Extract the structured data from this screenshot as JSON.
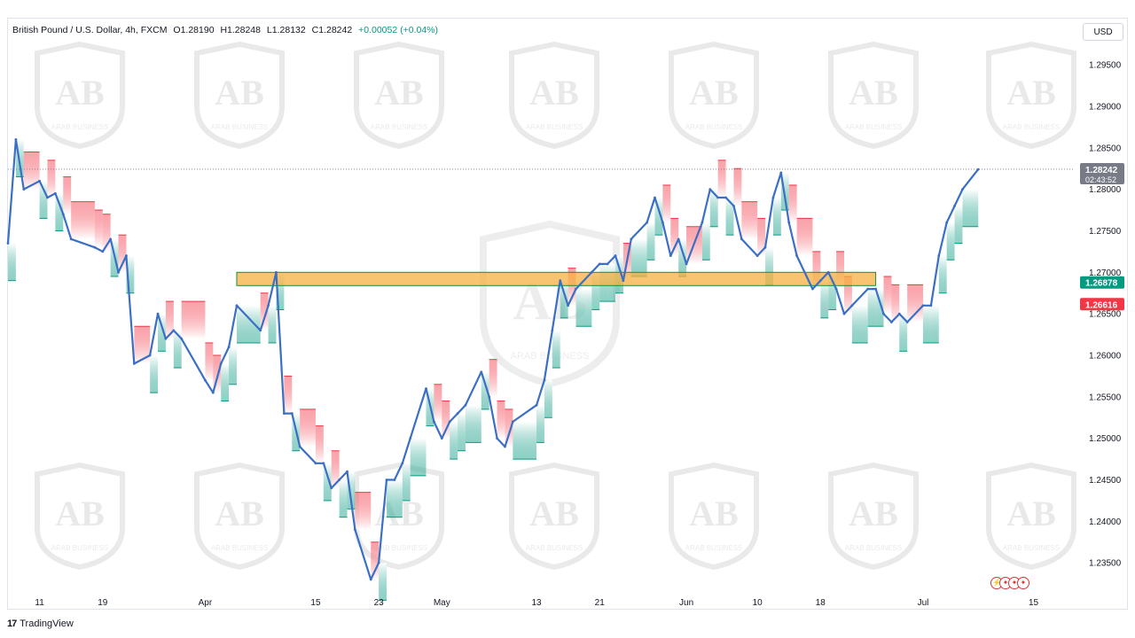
{
  "header": {
    "symbol": "British Pound / U.S. Dollar, 4h, FXCM",
    "open": "O1.28190",
    "high": "H1.28248",
    "low": "L1.28132",
    "close": "C1.28242",
    "change": "+0.00052 (+0.04%)"
  },
  "currency_button": "USD",
  "footer": {
    "brand": "TradingView",
    "logo": "17"
  },
  "watermark": {
    "initials": "AB",
    "text": "ARAB BUSINESS"
  },
  "colors": {
    "candle": "#3b6fc4",
    "up_band": "#089981",
    "down_band": "#f23645",
    "zone": "#f5b041",
    "zone_border": "#1a8f3a",
    "price_tag": "#787b86"
  },
  "chart_data": {
    "type": "line",
    "title": "British Pound / U.S. Dollar, 4h, FXCM",
    "ylim": [
      1.2315,
      1.298
    ],
    "y_ticks": [
      "1.29500",
      "1.29000",
      "1.28500",
      "1.28000",
      "1.27500",
      "1.27000",
      "1.26500",
      "1.26000",
      "1.25500",
      "1.25000",
      "1.24500",
      "1.24000",
      "1.23500"
    ],
    "y_tick_values": [
      1.295,
      1.29,
      1.285,
      1.28,
      1.275,
      1.27,
      1.265,
      1.26,
      1.255,
      1.25,
      1.245,
      1.24,
      1.235
    ],
    "x_ticks": [
      "11",
      "19",
      "Apr",
      "15",
      "23",
      "May",
      "13",
      "21",
      "Jun",
      "10",
      "18",
      "Jul",
      "15"
    ],
    "x_tick_values": [
      "2024-03-11",
      "2024-03-19",
      "2024-04-01",
      "2024-04-15",
      "2024-04-23",
      "2024-05-01",
      "2024-05-13",
      "2024-05-21",
      "2024-06-01",
      "2024-06-10",
      "2024-06-18",
      "2024-07-01",
      "2024-07-15"
    ],
    "series": [
      {
        "values": [
          [
            "2024-03-07",
            1.2735
          ],
          [
            "2024-03-08",
            1.286
          ],
          [
            "2024-03-09",
            1.28
          ],
          [
            "2024-03-11",
            1.281
          ],
          [
            "2024-03-12",
            1.279
          ],
          [
            "2024-03-13",
            1.2795
          ],
          [
            "2024-03-14",
            1.277
          ],
          [
            "2024-03-15",
            1.274
          ],
          [
            "2024-03-18",
            1.273
          ],
          [
            "2024-03-19",
            1.2725
          ],
          [
            "2024-03-20",
            1.274
          ],
          [
            "2024-03-21",
            1.27
          ],
          [
            "2024-03-22",
            1.272
          ],
          [
            "2024-03-23",
            1.259
          ],
          [
            "2024-03-25",
            1.26
          ],
          [
            "2024-03-26",
            1.265
          ],
          [
            "2024-03-27",
            1.262
          ],
          [
            "2024-03-28",
            1.263
          ],
          [
            "2024-03-29",
            1.262
          ],
          [
            "2024-04-01",
            1.257
          ],
          [
            "2024-04-02",
            1.2555
          ],
          [
            "2024-04-03",
            1.259
          ],
          [
            "2024-04-04",
            1.261
          ],
          [
            "2024-04-05",
            1.266
          ],
          [
            "2024-04-08",
            1.263
          ],
          [
            "2024-04-09",
            1.266
          ],
          [
            "2024-04-10",
            1.27
          ],
          [
            "2024-04-11",
            1.253
          ],
          [
            "2024-04-12",
            1.253
          ],
          [
            "2024-04-13",
            1.249
          ],
          [
            "2024-04-15",
            1.247
          ],
          [
            "2024-04-16",
            1.247
          ],
          [
            "2024-04-17",
            1.244
          ],
          [
            "2024-04-18",
            1.245
          ],
          [
            "2024-04-19",
            1.246
          ],
          [
            "2024-04-20",
            1.239
          ],
          [
            "2024-04-22",
            1.233
          ],
          [
            "2024-04-23",
            1.235
          ],
          [
            "2024-04-24",
            1.245
          ],
          [
            "2024-04-25",
            1.245
          ],
          [
            "2024-04-26",
            1.247
          ],
          [
            "2024-04-27",
            1.25
          ],
          [
            "2024-04-29",
            1.256
          ],
          [
            "2024-04-30",
            1.252
          ],
          [
            "2024-05-01",
            1.25
          ],
          [
            "2024-05-02",
            1.252
          ],
          [
            "2024-05-03",
            1.253
          ],
          [
            "2024-05-04",
            1.254
          ],
          [
            "2024-05-06",
            1.258
          ],
          [
            "2024-05-07",
            1.255
          ],
          [
            "2024-05-08",
            1.25
          ],
          [
            "2024-05-09",
            1.249
          ],
          [
            "2024-05-10",
            1.252
          ],
          [
            "2024-05-13",
            1.254
          ],
          [
            "2024-05-14",
            1.257
          ],
          [
            "2024-05-15",
            1.263
          ],
          [
            "2024-05-16",
            1.269
          ],
          [
            "2024-05-17",
            1.266
          ],
          [
            "2024-05-18",
            1.268
          ],
          [
            "2024-05-20",
            1.27
          ],
          [
            "2024-05-21",
            1.271
          ],
          [
            "2024-05-22",
            1.271
          ],
          [
            "2024-05-23",
            1.272
          ],
          [
            "2024-05-24",
            1.269
          ],
          [
            "2024-05-25",
            1.274
          ],
          [
            "2024-05-27",
            1.276
          ],
          [
            "2024-05-28",
            1.279
          ],
          [
            "2024-05-29",
            1.276
          ],
          [
            "2024-05-30",
            1.272
          ],
          [
            "2024-05-31",
            1.274
          ],
          [
            "2024-06-01",
            1.271
          ],
          [
            "2024-06-03",
            1.276
          ],
          [
            "2024-06-04",
            1.28
          ],
          [
            "2024-06-05",
            1.279
          ],
          [
            "2024-06-06",
            1.279
          ],
          [
            "2024-06-07",
            1.278
          ],
          [
            "2024-06-08",
            1.274
          ],
          [
            "2024-06-10",
            1.272
          ],
          [
            "2024-06-11",
            1.273
          ],
          [
            "2024-06-12",
            1.279
          ],
          [
            "2024-06-13",
            1.282
          ],
          [
            "2024-06-14",
            1.276
          ],
          [
            "2024-06-15",
            1.272
          ],
          [
            "2024-06-17",
            1.268
          ],
          [
            "2024-06-18",
            1.269
          ],
          [
            "2024-06-19",
            1.27
          ],
          [
            "2024-06-20",
            1.268
          ],
          [
            "2024-06-21",
            1.265
          ],
          [
            "2024-06-22",
            1.266
          ],
          [
            "2024-06-24",
            1.268
          ],
          [
            "2024-06-25",
            1.268
          ],
          [
            "2024-06-26",
            1.265
          ],
          [
            "2024-06-27",
            1.264
          ],
          [
            "2024-06-28",
            1.265
          ],
          [
            "2024-06-29",
            1.264
          ],
          [
            "2024-07-01",
            1.266
          ],
          [
            "2024-07-02",
            1.266
          ],
          [
            "2024-07-03",
            1.272
          ],
          [
            "2024-07-04",
            1.276
          ],
          [
            "2024-07-05",
            1.278
          ],
          [
            "2024-07-06",
            1.28
          ],
          [
            "2024-07-08",
            1.2824
          ]
        ]
      }
    ],
    "zones": [
      {
        "from": "2024-04-05",
        "to": "2024-06-25",
        "low": 1.2684,
        "high": 1.27
      }
    ],
    "price_labels": [
      {
        "text": "1.28242",
        "value": 1.28242,
        "color": "#787b86",
        "sub": "02:43:52"
      },
      {
        "text": "1.26878",
        "value": 1.26878,
        "color": "#089981"
      },
      {
        "text": "1.26616",
        "value": 1.26616,
        "color": "#f23645"
      }
    ]
  }
}
